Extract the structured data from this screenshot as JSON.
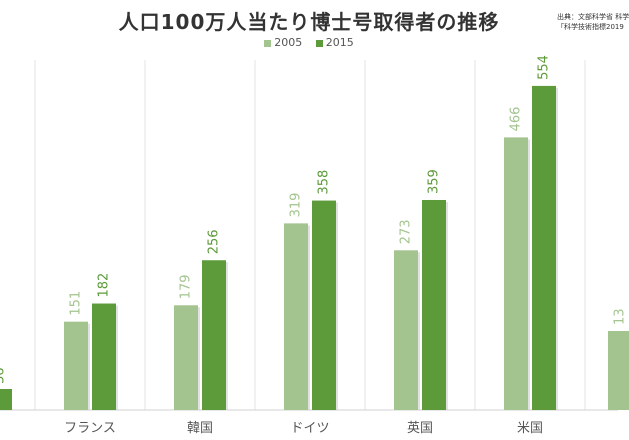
{
  "chart_data": {
    "type": "bar",
    "title": "人口100万人当たり博士号取得者の推移",
    "source_lines": [
      "出典：文部科学省 科学",
      "「科学技術指標2019"
    ],
    "categories": [
      "",
      "フランス",
      "韓国",
      "ドイツ",
      "英国",
      "米国",
      ""
    ],
    "series": [
      {
        "name": "2005",
        "color": "#a3c48f",
        "values": [
          null,
          151,
          179,
          319,
          273,
          466,
          null
        ]
      },
      {
        "name": "2015",
        "color": "#5c9a3a",
        "values": [
          null,
          182,
          256,
          358,
          359,
          554,
          null
        ]
      }
    ],
    "partial_labels": [
      "36",
      "13"
    ],
    "ylim": [
      0,
      600
    ],
    "grid": true,
    "legend": "top-center"
  }
}
